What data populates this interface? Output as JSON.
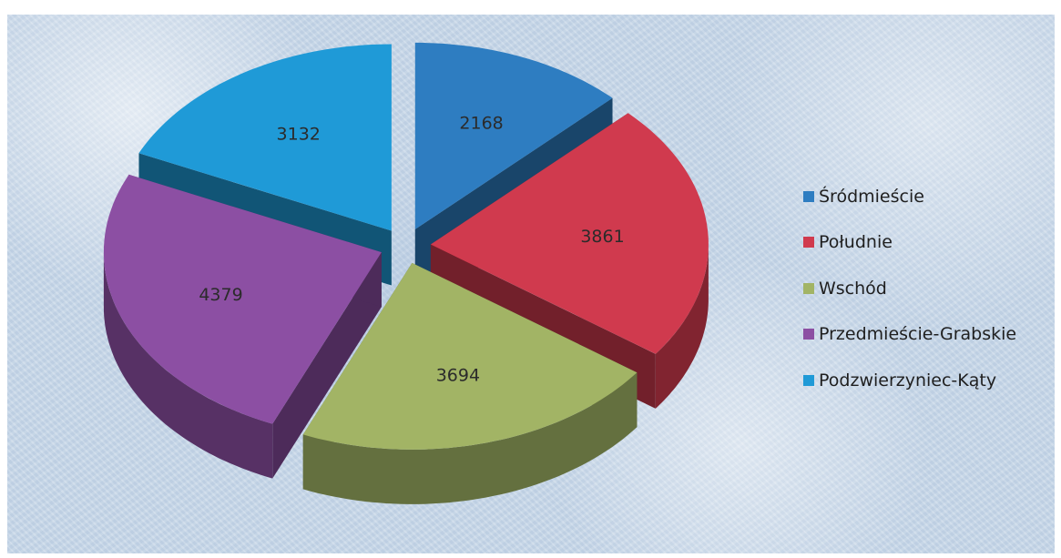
{
  "chart_data": {
    "type": "pie",
    "variant": "3d-exploded",
    "title": "",
    "legend_position": "right",
    "slices": [
      {
        "label": "Śródmieście",
        "value": 2168,
        "color": "#2e7dc1"
      },
      {
        "label": "Południe",
        "value": 3861,
        "color": "#d03a4e"
      },
      {
        "label": "Wschód",
        "value": 3694,
        "color": "#a2b465"
      },
      {
        "label": "Przedmieście-Grabskie",
        "value": 4379,
        "color": "#8c4fa3"
      },
      {
        "label": "Podzwierzyniec-Kąty",
        "value": 3132,
        "color": "#1f9ad7"
      }
    ]
  }
}
